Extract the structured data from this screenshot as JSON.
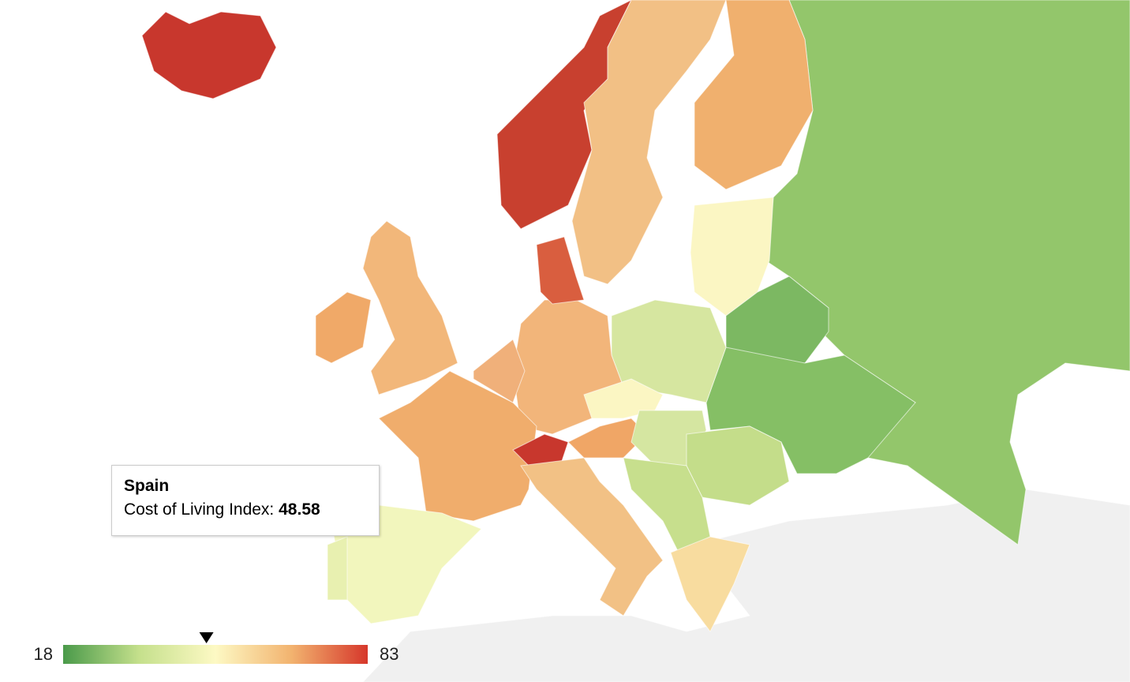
{
  "map": {
    "legend": {
      "min": 18,
      "max": 83,
      "colors": [
        "#4a9a4a",
        "#c5e08c",
        "#fdf9c4",
        "#f2b36f",
        "#d6372b"
      ]
    },
    "tooltip": {
      "title": "Spain",
      "label": "Cost of Living Index:",
      "value": 48.58
    }
  }
}
